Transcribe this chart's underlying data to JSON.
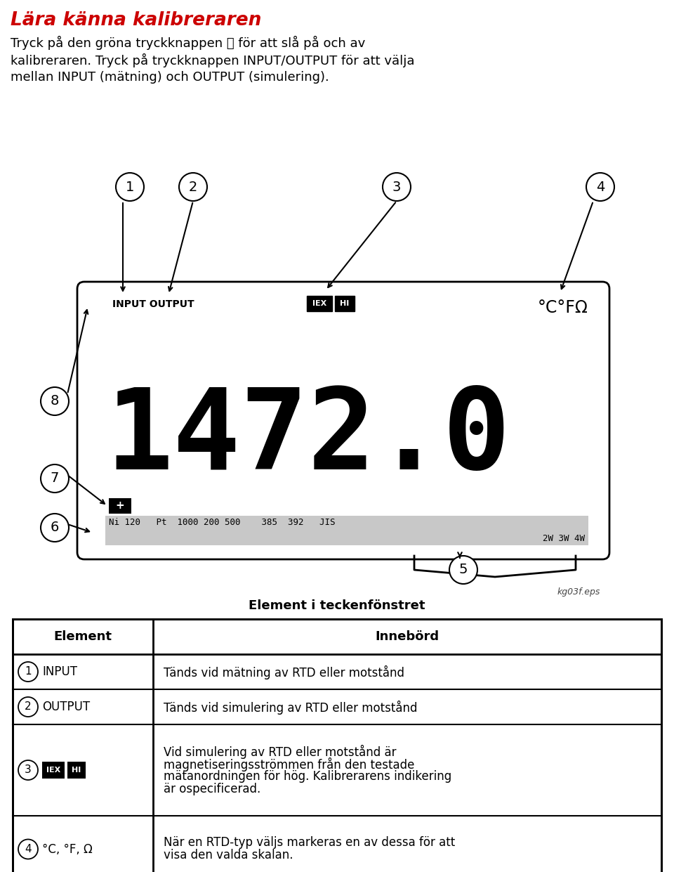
{
  "title": "Lära känna kalibreraren",
  "title_color": "#cc0000",
  "title_fontsize": 19,
  "para1": "Tryck på den gröna tryckknappen ⓘ för att slå på och av",
  "para2": "kalibreraren. Tryck på tryckknappen INPUT/OUTPUT för att välja",
  "para3": "mellan INPUT (mätning) och OUTPUT (simulering).",
  "filename": "kg03f.eps",
  "section_title": "Element i teckenfönstret",
  "table_headers": [
    "Element",
    "Innebörd"
  ],
  "table_rows": [
    {
      "num": "1",
      "element": "INPUT",
      "meaning": "Tänds vid mätning av RTD eller motstånd",
      "iex": false
    },
    {
      "num": "2",
      "element": "OUTPUT",
      "meaning": "Tänds vid simulering av RTD eller motstånd",
      "iex": false
    },
    {
      "num": "3",
      "element": "IEX_HI",
      "meaning": "Vid simulering av RTD eller motstånd är\nmagnetiseringsströmmen från den testade\nmätanordningen för hög. Kalibrerarens indikering\när ospecificerad.",
      "iex": true
    },
    {
      "num": "4",
      "element": "°C, °F, Ω",
      "meaning": "När en RTD-typ väljs markeras en av dessa för att\nvisa den valda skalan.",
      "iex": false
    }
  ],
  "bg_color": "#ffffff"
}
